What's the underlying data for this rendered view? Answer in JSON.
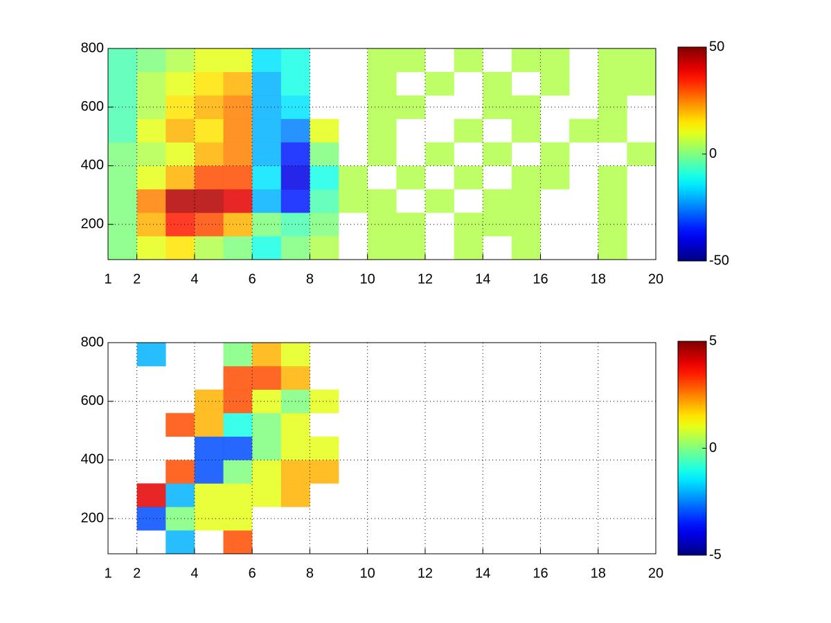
{
  "chart_data": [
    {
      "type": "heatmap",
      "colormap": "jet",
      "grid": true,
      "x_edges": [
        1,
        2,
        3,
        4,
        5,
        6,
        7,
        8,
        9,
        10,
        11,
        12,
        13,
        14,
        15,
        16,
        17,
        18,
        19,
        20
      ],
      "y_edges": [
        80,
        160,
        240,
        320,
        400,
        480,
        560,
        640,
        720,
        800
      ],
      "values": [
        [
          0,
          10,
          15,
          5,
          0,
          -10,
          0,
          5,
          null,
          5,
          5,
          null,
          5,
          null,
          5,
          null,
          null,
          5,
          null
        ],
        [
          0,
          20,
          35,
          30,
          20,
          0,
          -5,
          0,
          null,
          5,
          5,
          null,
          5,
          5,
          5,
          null,
          null,
          5,
          null
        ],
        [
          0,
          25,
          45,
          45,
          40,
          -20,
          -35,
          -5,
          5,
          5,
          null,
          5,
          null,
          5,
          5,
          null,
          null,
          5,
          null
        ],
        [
          0,
          10,
          20,
          30,
          30,
          -15,
          -40,
          -10,
          5,
          null,
          5,
          null,
          5,
          null,
          5,
          5,
          null,
          5,
          null
        ],
        [
          0,
          5,
          10,
          20,
          25,
          -20,
          -35,
          0,
          null,
          5,
          null,
          5,
          null,
          5,
          null,
          5,
          null,
          null,
          5
        ],
        [
          -5,
          10,
          20,
          15,
          25,
          -20,
          -25,
          10,
          null,
          5,
          null,
          null,
          5,
          null,
          5,
          null,
          5,
          5,
          null
        ],
        [
          -5,
          5,
          15,
          20,
          25,
          -20,
          -15,
          null,
          null,
          5,
          5,
          null,
          null,
          5,
          5,
          null,
          null,
          5,
          null
        ],
        [
          -5,
          5,
          10,
          15,
          20,
          -20,
          -10,
          null,
          null,
          5,
          null,
          5,
          null,
          5,
          null,
          5,
          null,
          5,
          5
        ],
        [
          -5,
          0,
          5,
          10,
          10,
          -15,
          -10,
          null,
          null,
          5,
          5,
          null,
          5,
          null,
          5,
          5,
          null,
          5,
          5
        ]
      ],
      "xlim": [
        1,
        20
      ],
      "ylim": [
        80,
        800
      ],
      "xticks": [
        1,
        2,
        4,
        6,
        8,
        10,
        12,
        14,
        16,
        18,
        20
      ],
      "yticks": [
        200,
        400,
        600,
        800
      ],
      "clim": [
        -50,
        50
      ],
      "cticks": [
        -50,
        0,
        50
      ]
    },
    {
      "type": "heatmap",
      "colormap": "jet",
      "grid": true,
      "x_edges": [
        1,
        2,
        3,
        4,
        5,
        6,
        7,
        8,
        9,
        10,
        11,
        12,
        13,
        14,
        15,
        16,
        17,
        18,
        19,
        20
      ],
      "y_edges": [
        80,
        160,
        240,
        320,
        400,
        480,
        560,
        640,
        720,
        800
      ],
      "values": [
        [
          null,
          null,
          -2,
          null,
          3,
          null,
          null,
          null,
          null,
          null,
          null,
          null,
          null,
          null,
          null,
          null,
          null,
          null,
          null
        ],
        [
          null,
          -3,
          0,
          1,
          1,
          null,
          null,
          null,
          null,
          null,
          null,
          null,
          null,
          null,
          null,
          null,
          null,
          null,
          null
        ],
        [
          null,
          4,
          -2,
          1,
          1,
          1,
          2,
          null,
          null,
          null,
          null,
          null,
          null,
          null,
          null,
          null,
          null,
          null,
          null
        ],
        [
          null,
          null,
          3,
          -3,
          0,
          1,
          2,
          2,
          null,
          null,
          null,
          null,
          null,
          null,
          null,
          null,
          null,
          null,
          null
        ],
        [
          null,
          null,
          null,
          -3,
          -3,
          0,
          1,
          1,
          null,
          null,
          null,
          null,
          null,
          null,
          null,
          null,
          null,
          null,
          null
        ],
        [
          null,
          null,
          3,
          2,
          -1,
          0,
          1,
          null,
          null,
          null,
          null,
          null,
          null,
          null,
          null,
          null,
          null,
          null,
          null
        ],
        [
          null,
          null,
          null,
          2,
          3,
          1,
          0,
          1,
          null,
          null,
          null,
          null,
          null,
          null,
          null,
          null,
          null,
          null,
          null
        ],
        [
          null,
          null,
          null,
          null,
          3,
          3,
          2,
          null,
          null,
          null,
          null,
          null,
          null,
          null,
          null,
          null,
          null,
          null,
          null
        ],
        [
          null,
          -2,
          null,
          null,
          0,
          2,
          1,
          null,
          null,
          null,
          null,
          null,
          null,
          null,
          null,
          null,
          null,
          null,
          null
        ]
      ],
      "xlim": [
        1,
        20
      ],
      "ylim": [
        80,
        800
      ],
      "xticks": [
        1,
        2,
        4,
        6,
        8,
        10,
        12,
        14,
        16,
        18,
        20
      ],
      "yticks": [
        200,
        400,
        600,
        800
      ],
      "clim": [
        -5,
        5
      ],
      "cticks": [
        -5,
        0,
        5
      ]
    }
  ]
}
